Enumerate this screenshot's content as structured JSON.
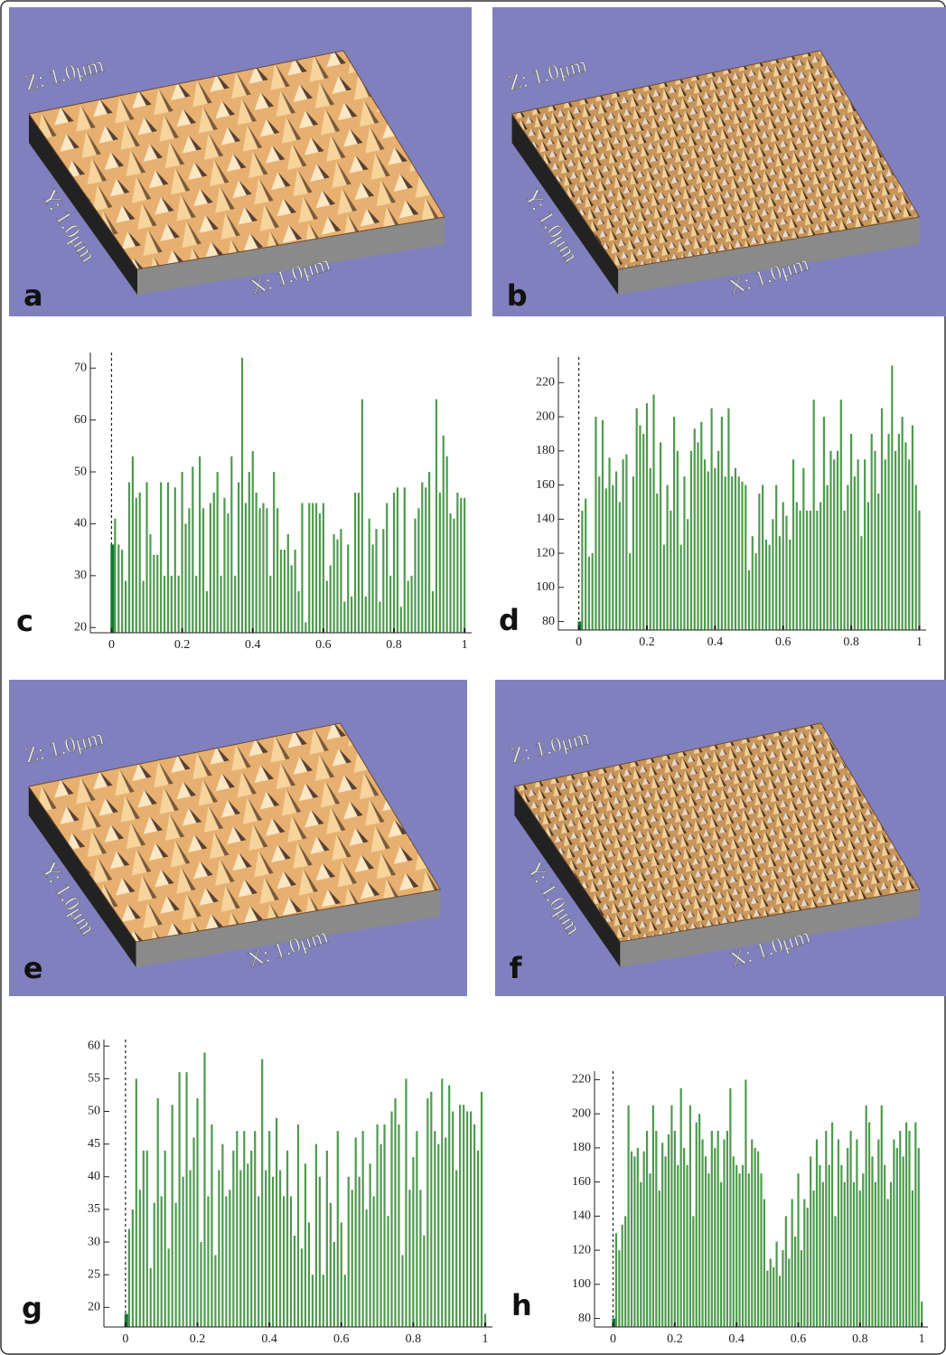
{
  "images": [
    {
      "label": "a",
      "z_label": "Z: 1.0μm",
      "y_label": "Y: 1.0μm",
      "x_label": "X: 1.0μm"
    },
    {
      "label": "b",
      "z_label": "Z: 1.0μm",
      "y_label": "Y: 1.0μm",
      "x_label": "X: 1.0μm"
    },
    {
      "label": "e",
      "z_label": "Z: 1.0μm",
      "y_label": "Y: 1.0μm",
      "x_label": "X: 1.0μm"
    },
    {
      "label": "f",
      "z_label": "Z: 1.0μm",
      "y_label": "Y: 1.0μm",
      "x_label": "X: 1.0μm"
    }
  ],
  "chart_data": [
    {
      "type": "bar",
      "label": "c",
      "color": "#4e9a4e",
      "first_color": "#107a30",
      "x": [
        0,
        0.01,
        0.02,
        0.03,
        0.04,
        0.05,
        0.06,
        0.07,
        0.08,
        0.09,
        0.1,
        0.11,
        0.12,
        0.13,
        0.14,
        0.15,
        0.16,
        0.17,
        0.18,
        0.19,
        0.2,
        0.21,
        0.22,
        0.23,
        0.24,
        0.25,
        0.26,
        0.27,
        0.28,
        0.29,
        0.3,
        0.31,
        0.32,
        0.33,
        0.34,
        0.35,
        0.36,
        0.37,
        0.38,
        0.39,
        0.4,
        0.41,
        0.42,
        0.43,
        0.44,
        0.45,
        0.46,
        0.47,
        0.48,
        0.49,
        0.5,
        0.51,
        0.52,
        0.53,
        0.54,
        0.55,
        0.56,
        0.57,
        0.58,
        0.59,
        0.6,
        0.61,
        0.62,
        0.63,
        0.64,
        0.65,
        0.66,
        0.67,
        0.68,
        0.69,
        0.7,
        0.71,
        0.72,
        0.73,
        0.74,
        0.75,
        0.76,
        0.77,
        0.78,
        0.79,
        0.8,
        0.81,
        0.82,
        0.83,
        0.84,
        0.85,
        0.86,
        0.87,
        0.88,
        0.89,
        0.9,
        0.91,
        0.92,
        0.93,
        0.94,
        0.95,
        0.96,
        0.97,
        0.98,
        0.99,
        1
      ],
      "values": [
        36,
        41,
        36,
        35,
        29,
        48,
        53,
        45,
        46,
        29,
        48,
        38,
        34,
        34,
        48,
        30,
        48,
        30,
        47,
        30,
        50,
        40,
        43,
        51,
        30,
        53,
        43,
        27,
        44,
        46,
        50,
        30,
        45,
        42,
        53,
        30,
        48,
        72,
        44,
        50,
        54,
        46,
        43,
        44,
        43,
        30,
        50,
        43,
        35,
        35,
        38,
        32,
        35,
        27,
        44,
        21,
        44,
        44,
        44,
        42,
        44,
        29,
        32,
        38,
        37,
        39,
        25,
        36,
        26,
        46,
        46,
        64,
        26,
        41,
        36,
        39,
        25,
        39,
        44,
        30,
        46,
        47,
        24,
        47,
        29,
        30,
        41,
        43,
        48,
        47,
        50,
        27,
        64,
        46,
        57,
        53,
        42,
        41,
        46,
        45,
        45
      ],
      "xlim": [
        -0.06,
        1.02
      ],
      "xticks": [
        0,
        0.2,
        0.4,
        0.6,
        0.8,
        1
      ],
      "ylim": [
        19,
        73
      ],
      "yticks": [
        20,
        30,
        40,
        50,
        60,
        70
      ]
    },
    {
      "type": "bar",
      "label": "d",
      "color": "#4e9a4e",
      "first_color": "#107a30",
      "x": [
        0,
        0.01,
        0.02,
        0.03,
        0.04,
        0.05,
        0.06,
        0.07,
        0.08,
        0.09,
        0.1,
        0.11,
        0.12,
        0.13,
        0.14,
        0.15,
        0.16,
        0.17,
        0.18,
        0.19,
        0.2,
        0.21,
        0.22,
        0.23,
        0.24,
        0.25,
        0.26,
        0.27,
        0.28,
        0.29,
        0.3,
        0.31,
        0.32,
        0.33,
        0.34,
        0.35,
        0.36,
        0.37,
        0.38,
        0.39,
        0.4,
        0.41,
        0.42,
        0.43,
        0.44,
        0.45,
        0.46,
        0.47,
        0.48,
        0.49,
        0.5,
        0.51,
        0.52,
        0.53,
        0.54,
        0.55,
        0.56,
        0.57,
        0.58,
        0.59,
        0.6,
        0.61,
        0.62,
        0.63,
        0.64,
        0.65,
        0.66,
        0.67,
        0.68,
        0.69,
        0.7,
        0.71,
        0.72,
        0.73,
        0.74,
        0.75,
        0.76,
        0.77,
        0.78,
        0.79,
        0.8,
        0.81,
        0.82,
        0.83,
        0.84,
        0.85,
        0.86,
        0.87,
        0.88,
        0.89,
        0.9,
        0.91,
        0.92,
        0.93,
        0.94,
        0.95,
        0.96,
        0.97,
        0.98,
        0.99,
        1
      ],
      "values": [
        80,
        145,
        152,
        118,
        120,
        200,
        165,
        198,
        158,
        176,
        160,
        168,
        150,
        175,
        178,
        120,
        165,
        205,
        195,
        190,
        208,
        170,
        213,
        155,
        185,
        125,
        160,
        145,
        200,
        180,
        125,
        165,
        140,
        180,
        193,
        185,
        197,
        175,
        168,
        205,
        170,
        180,
        200,
        165,
        205,
        165,
        170,
        165,
        162,
        160,
        110,
        130,
        120,
        155,
        160,
        128,
        125,
        140,
        160,
        130,
        150,
        142,
        128,
        175,
        150,
        145,
        170,
        145,
        145,
        210,
        145,
        150,
        200,
        160,
        180,
        175,
        180,
        210,
        145,
        160,
        190,
        165,
        175,
        130,
        175,
        150,
        190,
        180,
        155,
        205,
        175,
        190,
        230,
        180,
        190,
        200,
        185,
        175,
        195,
        160,
        145
      ],
      "xlim": [
        -0.06,
        1.02
      ],
      "xticks": [
        0,
        0.2,
        0.4,
        0.6,
        0.8,
        1
      ],
      "ylim": [
        75,
        235
      ],
      "yticks": [
        80,
        100,
        120,
        140,
        160,
        180,
        200,
        220
      ]
    },
    {
      "type": "bar",
      "label": "g",
      "color": "#4e9a4e",
      "first_color": "#107a30",
      "x": [
        0,
        0.01,
        0.02,
        0.03,
        0.04,
        0.05,
        0.06,
        0.07,
        0.08,
        0.09,
        0.1,
        0.11,
        0.12,
        0.13,
        0.14,
        0.15,
        0.16,
        0.17,
        0.18,
        0.19,
        0.2,
        0.21,
        0.22,
        0.23,
        0.24,
        0.25,
        0.26,
        0.27,
        0.28,
        0.29,
        0.3,
        0.31,
        0.32,
        0.33,
        0.34,
        0.35,
        0.36,
        0.37,
        0.38,
        0.39,
        0.4,
        0.41,
        0.42,
        0.43,
        0.44,
        0.45,
        0.46,
        0.47,
        0.48,
        0.49,
        0.5,
        0.51,
        0.52,
        0.53,
        0.54,
        0.55,
        0.56,
        0.57,
        0.58,
        0.59,
        0.6,
        0.61,
        0.62,
        0.63,
        0.64,
        0.65,
        0.66,
        0.67,
        0.68,
        0.69,
        0.7,
        0.71,
        0.72,
        0.73,
        0.74,
        0.75,
        0.76,
        0.77,
        0.78,
        0.79,
        0.8,
        0.81,
        0.82,
        0.83,
        0.84,
        0.85,
        0.86,
        0.87,
        0.88,
        0.89,
        0.9,
        0.91,
        0.92,
        0.93,
        0.94,
        0.95,
        0.96,
        0.97,
        0.98,
        0.99,
        1
      ],
      "values": [
        19,
        32,
        35,
        55,
        38,
        44,
        44,
        26,
        36,
        52,
        37,
        44,
        29,
        51,
        36,
        56,
        40,
        56,
        41,
        46,
        52,
        30,
        59,
        37,
        48,
        28,
        41,
        45,
        37,
        38,
        44,
        47,
        41,
        47,
        42,
        44,
        47,
        37,
        58,
        41,
        47,
        40,
        49,
        41,
        37,
        44,
        37,
        31,
        48,
        29,
        42,
        33,
        25,
        45,
        40,
        25,
        44,
        36,
        30,
        47,
        33,
        25,
        40,
        38,
        46,
        40,
        47,
        35,
        42,
        37,
        48,
        45,
        48,
        34,
        50,
        52,
        48,
        28,
        55,
        38,
        43,
        47,
        38,
        31,
        52,
        53,
        47,
        45,
        55,
        46,
        54,
        50,
        41,
        51,
        51,
        50,
        50,
        48,
        44,
        53,
        19
      ],
      "xlim": [
        -0.06,
        1.02
      ],
      "xticks": [
        0,
        0.2,
        0.4,
        0.6,
        0.8,
        1
      ],
      "ylim": [
        17,
        61
      ],
      "yticks": [
        20,
        25,
        30,
        35,
        40,
        45,
        50,
        55,
        60
      ]
    },
    {
      "type": "bar",
      "label": "h",
      "color": "#4e9a4e",
      "first_color": "#107a30",
      "x": [
        0,
        0.01,
        0.02,
        0.03,
        0.04,
        0.05,
        0.06,
        0.07,
        0.08,
        0.09,
        0.1,
        0.11,
        0.12,
        0.13,
        0.14,
        0.15,
        0.16,
        0.17,
        0.18,
        0.19,
        0.2,
        0.21,
        0.22,
        0.23,
        0.24,
        0.25,
        0.26,
        0.27,
        0.28,
        0.29,
        0.3,
        0.31,
        0.32,
        0.33,
        0.34,
        0.35,
        0.36,
        0.37,
        0.38,
        0.39,
        0.4,
        0.41,
        0.42,
        0.43,
        0.44,
        0.45,
        0.46,
        0.47,
        0.48,
        0.49,
        0.5,
        0.51,
        0.52,
        0.53,
        0.54,
        0.55,
        0.56,
        0.57,
        0.58,
        0.59,
        0.6,
        0.61,
        0.62,
        0.63,
        0.64,
        0.65,
        0.66,
        0.67,
        0.68,
        0.69,
        0.7,
        0.71,
        0.72,
        0.73,
        0.74,
        0.75,
        0.76,
        0.77,
        0.78,
        0.79,
        0.8,
        0.81,
        0.82,
        0.83,
        0.84,
        0.85,
        0.86,
        0.87,
        0.88,
        0.89,
        0.9,
        0.91,
        0.92,
        0.93,
        0.94,
        0.95,
        0.96,
        0.97,
        0.98,
        0.99,
        1
      ],
      "values": [
        80,
        130,
        120,
        135,
        140,
        205,
        178,
        175,
        180,
        160,
        178,
        190,
        165,
        205,
        190,
        155,
        183,
        175,
        188,
        205,
        190,
        170,
        215,
        180,
        170,
        205,
        140,
        195,
        200,
        185,
        175,
        165,
        190,
        180,
        190,
        160,
        185,
        190,
        215,
        175,
        170,
        165,
        170,
        220,
        165,
        185,
        180,
        178,
        165,
        150,
        108,
        115,
        110,
        125,
        105,
        120,
        140,
        115,
        150,
        128,
        165,
        120,
        150,
        145,
        175,
        155,
        185,
        170,
        160,
        190,
        170,
        195,
        140,
        185,
        170,
        160,
        180,
        190,
        160,
        185,
        155,
        165,
        205,
        195,
        175,
        160,
        185,
        205,
        170,
        150,
        160,
        185,
        180,
        190,
        175,
        195,
        190,
        155,
        195,
        180,
        90
      ],
      "xlim": [
        -0.06,
        1.02
      ],
      "xticks": [
        0,
        0.2,
        0.4,
        0.6,
        0.8,
        1
      ],
      "ylim": [
        75,
        225
      ],
      "yticks": [
        80,
        100,
        120,
        140,
        160,
        180,
        200,
        220
      ]
    }
  ]
}
